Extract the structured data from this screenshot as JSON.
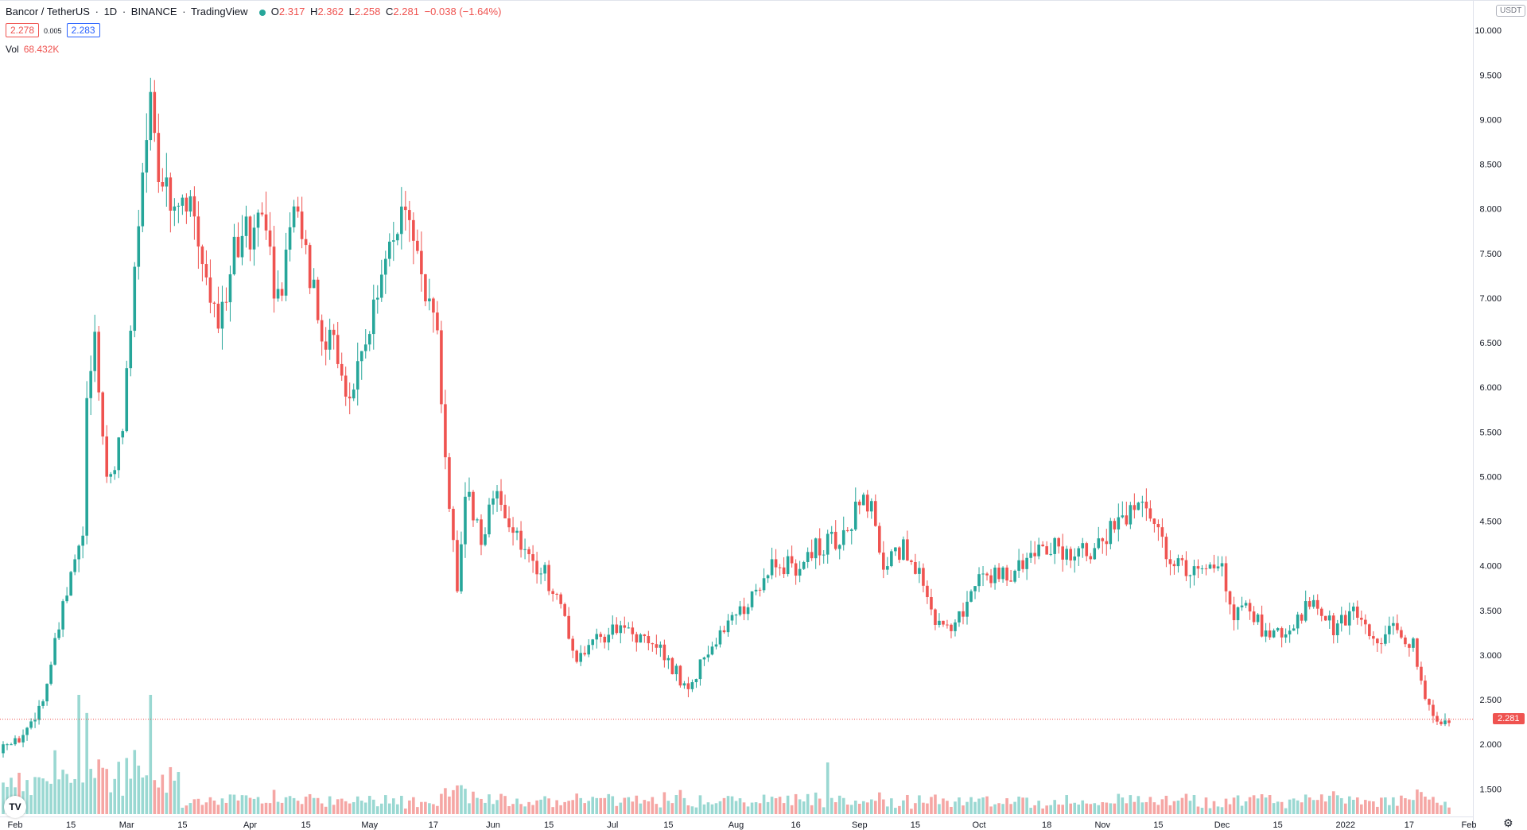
{
  "header": {
    "symbol": "Bancor / TetherUS",
    "interval": "1D",
    "exchange": "BINANCE",
    "source": "TradingView",
    "open": "2.317",
    "high": "2.362",
    "low": "2.258",
    "close": "2.281",
    "change": "−0.038 (−1.64%)",
    "bid": "2.278",
    "spread": "0.005",
    "ask": "2.283",
    "vol_label": "Vol",
    "vol_value": "68.432K"
  },
  "currency_label": "USDT",
  "last_price_label": "2.281",
  "colors": {
    "up": "#26a69a",
    "down": "#ef5350",
    "vol_up": "#9ad8d2",
    "vol_down": "#f5a6a4"
  },
  "icons": [
    "tradingview-logo-icon",
    "gear-icon",
    "status-dot-icon"
  ],
  "chart_data": {
    "type": "candlestick",
    "x_start": "2021-01-29",
    "x_end": "2022-01-27",
    "ylim": [
      1.2,
      10.1
    ],
    "y_ticks": [
      "10.000",
      "9.500",
      "9.000",
      "8.500",
      "8.000",
      "7.500",
      "7.000",
      "6.500",
      "6.000",
      "5.500",
      "5.000",
      "4.500",
      "4.000",
      "3.500",
      "3.000",
      "2.500",
      "2.000",
      "1.500"
    ],
    "x_ticks": [
      {
        "date": "2021-02-01",
        "label": "Feb"
      },
      {
        "date": "2021-02-15",
        "label": "15"
      },
      {
        "date": "2021-03-01",
        "label": "Mar"
      },
      {
        "date": "2021-03-15",
        "label": "15"
      },
      {
        "date": "2021-04-01",
        "label": "Apr"
      },
      {
        "date": "2021-04-15",
        "label": "15"
      },
      {
        "date": "2021-05-01",
        "label": "May"
      },
      {
        "date": "2021-05-17",
        "label": "17"
      },
      {
        "date": "2021-06-01",
        "label": "Jun"
      },
      {
        "date": "2021-06-15",
        "label": "15"
      },
      {
        "date": "2021-07-01",
        "label": "Jul"
      },
      {
        "date": "2021-07-15",
        "label": "15"
      },
      {
        "date": "2021-08-01",
        "label": "Aug"
      },
      {
        "date": "2021-08-16",
        "label": "16"
      },
      {
        "date": "2021-09-01",
        "label": "Sep"
      },
      {
        "date": "2021-09-15",
        "label": "15"
      },
      {
        "date": "2021-10-01",
        "label": "Oct"
      },
      {
        "date": "2021-10-18",
        "label": "18"
      },
      {
        "date": "2021-11-01",
        "label": "Nov"
      },
      {
        "date": "2021-11-15",
        "label": "15"
      },
      {
        "date": "2021-12-01",
        "label": "Dec"
      },
      {
        "date": "2021-12-15",
        "label": "15"
      },
      {
        "date": "2022-01-01",
        "label": "2022"
      },
      {
        "date": "2022-01-17",
        "label": "17"
      },
      {
        "date": "2022-02-01",
        "label": "Feb"
      }
    ],
    "close_series": [
      {
        "date": "2021-01-29",
        "close": 1.9
      },
      {
        "date": "2021-02-03",
        "close": 2.1
      },
      {
        "date": "2021-02-08",
        "close": 2.5
      },
      {
        "date": "2021-02-13",
        "close": 3.5
      },
      {
        "date": "2021-02-18",
        "close": 4.4
      },
      {
        "date": "2021-02-19",
        "close": 5.9
      },
      {
        "date": "2021-02-21",
        "close": 6.6
      },
      {
        "date": "2021-02-23",
        "close": 5.4
      },
      {
        "date": "2021-02-25",
        "close": 4.9
      },
      {
        "date": "2021-02-28",
        "close": 5.5
      },
      {
        "date": "2021-03-03",
        "close": 7.3
      },
      {
        "date": "2021-03-05",
        "close": 8.6
      },
      {
        "date": "2021-03-07",
        "close": 9.3
      },
      {
        "date": "2021-03-09",
        "close": 8.5
      },
      {
        "date": "2021-03-13",
        "close": 7.8
      },
      {
        "date": "2021-03-17",
        "close": 8.0
      },
      {
        "date": "2021-03-21",
        "close": 7.2
      },
      {
        "date": "2021-03-24",
        "close": 6.8
      },
      {
        "date": "2021-03-28",
        "close": 7.5
      },
      {
        "date": "2021-04-03",
        "close": 7.9
      },
      {
        "date": "2021-04-08",
        "close": 7.0
      },
      {
        "date": "2021-04-13",
        "close": 8.1
      },
      {
        "date": "2021-04-18",
        "close": 6.8
      },
      {
        "date": "2021-04-22",
        "close": 6.4
      },
      {
        "date": "2021-04-26",
        "close": 5.8
      },
      {
        "date": "2021-04-30",
        "close": 6.6
      },
      {
        "date": "2021-05-05",
        "close": 7.3
      },
      {
        "date": "2021-05-10",
        "close": 8.1
      },
      {
        "date": "2021-05-14",
        "close": 7.4
      },
      {
        "date": "2021-05-18",
        "close": 6.5
      },
      {
        "date": "2021-05-20",
        "close": 5.1
      },
      {
        "date": "2021-05-23",
        "close": 3.7
      },
      {
        "date": "2021-05-25",
        "close": 4.9
      },
      {
        "date": "2021-05-29",
        "close": 4.3
      },
      {
        "date": "2021-06-02",
        "close": 4.8
      },
      {
        "date": "2021-06-08",
        "close": 4.2
      },
      {
        "date": "2021-06-14",
        "close": 3.9
      },
      {
        "date": "2021-06-19",
        "close": 3.4
      },
      {
        "date": "2021-06-22",
        "close": 2.9
      },
      {
        "date": "2021-06-27",
        "close": 3.2
      },
      {
        "date": "2021-07-03",
        "close": 3.3
      },
      {
        "date": "2021-07-08",
        "close": 3.2
      },
      {
        "date": "2021-07-14",
        "close": 3.0
      },
      {
        "date": "2021-07-20",
        "close": 2.6
      },
      {
        "date": "2021-07-24",
        "close": 3.0
      },
      {
        "date": "2021-07-30",
        "close": 3.4
      },
      {
        "date": "2021-08-04",
        "close": 3.6
      },
      {
        "date": "2021-08-10",
        "close": 4.0
      },
      {
        "date": "2021-08-16",
        "close": 4.0
      },
      {
        "date": "2021-08-21",
        "close": 4.2
      },
      {
        "date": "2021-08-26",
        "close": 4.3
      },
      {
        "date": "2021-08-31",
        "close": 4.6
      },
      {
        "date": "2021-09-04",
        "close": 4.8
      },
      {
        "date": "2021-09-07",
        "close": 4.0
      },
      {
        "date": "2021-09-12",
        "close": 4.2
      },
      {
        "date": "2021-09-16",
        "close": 3.9
      },
      {
        "date": "2021-09-21",
        "close": 3.3
      },
      {
        "date": "2021-09-26",
        "close": 3.4
      },
      {
        "date": "2021-10-02",
        "close": 3.9
      },
      {
        "date": "2021-10-08",
        "close": 3.9
      },
      {
        "date": "2021-10-14",
        "close": 4.1
      },
      {
        "date": "2021-10-20",
        "close": 4.2
      },
      {
        "date": "2021-10-26",
        "close": 4.1
      },
      {
        "date": "2021-11-01",
        "close": 4.3
      },
      {
        "date": "2021-11-06",
        "close": 4.5
      },
      {
        "date": "2021-11-10",
        "close": 4.7
      },
      {
        "date": "2021-11-14",
        "close": 4.5
      },
      {
        "date": "2021-11-18",
        "close": 4.0
      },
      {
        "date": "2021-11-24",
        "close": 3.9
      },
      {
        "date": "2021-11-30",
        "close": 4.1
      },
      {
        "date": "2021-12-04",
        "close": 3.4
      },
      {
        "date": "2021-12-07",
        "close": 3.6
      },
      {
        "date": "2021-12-12",
        "close": 3.2
      },
      {
        "date": "2021-12-18",
        "close": 3.3
      },
      {
        "date": "2021-12-24",
        "close": 3.6
      },
      {
        "date": "2021-12-29",
        "close": 3.3
      },
      {
        "date": "2022-01-03",
        "close": 3.5
      },
      {
        "date": "2022-01-08",
        "close": 3.1
      },
      {
        "date": "2022-01-13",
        "close": 3.3
      },
      {
        "date": "2022-01-18",
        "close": 3.1
      },
      {
        "date": "2022-01-21",
        "close": 2.5
      },
      {
        "date": "2022-01-24",
        "close": 2.3
      },
      {
        "date": "2022-01-27",
        "close": 2.28
      }
    ],
    "last_price": 2.281,
    "volume_spikes": [
      {
        "date": "2021-02-17",
        "value": "high"
      },
      {
        "date": "2021-03-07",
        "value": "high"
      },
      {
        "date": "2021-08-24",
        "value": "medium"
      }
    ],
    "grid": false,
    "legend": "top-left"
  }
}
